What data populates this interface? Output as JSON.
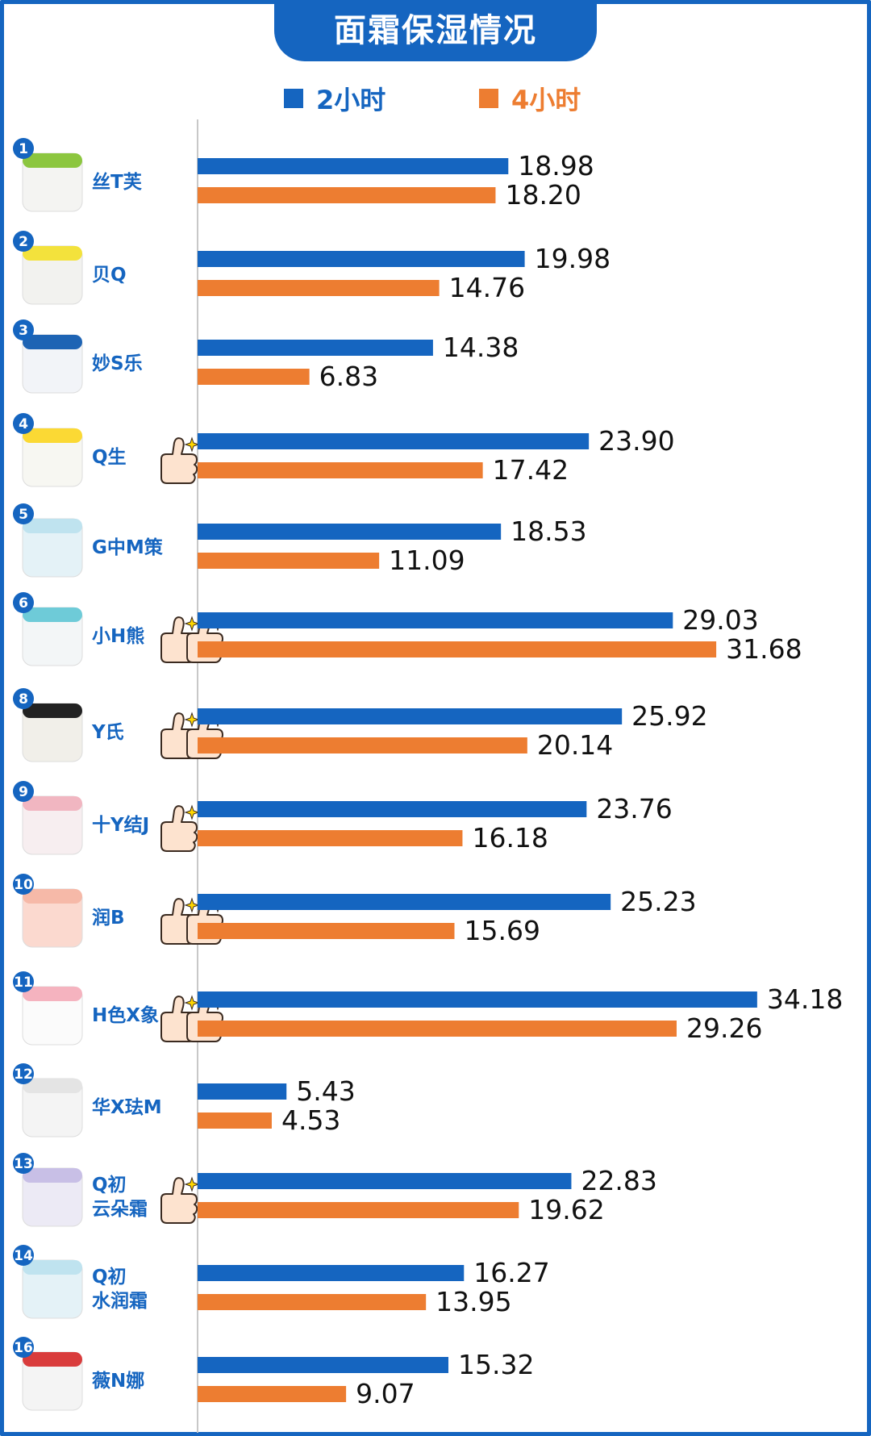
{
  "title": "面霜保湿情况",
  "legend": [
    {
      "label": "2小时",
      "color": "#1565c0"
    },
    {
      "label": "4小时",
      "color": "#ed7d31"
    }
  ],
  "chart_data": {
    "type": "bar",
    "orientation": "horizontal",
    "title": "面霜保湿情况",
    "categories": [
      {
        "rank": "1",
        "lines": [
          "丝T芙"
        ]
      },
      {
        "rank": "2",
        "lines": [
          "贝Q"
        ]
      },
      {
        "rank": "3",
        "lines": [
          "妙S乐"
        ]
      },
      {
        "rank": "4",
        "lines": [
          "Q生"
        ]
      },
      {
        "rank": "5",
        "lines": [
          "G中M策"
        ]
      },
      {
        "rank": "6",
        "lines": [
          "小H熊"
        ]
      },
      {
        "rank": "8",
        "lines": [
          "Y氏"
        ]
      },
      {
        "rank": "9",
        "lines": [
          "十Y结J"
        ]
      },
      {
        "rank": "10",
        "lines": [
          "润B"
        ]
      },
      {
        "rank": "11",
        "lines": [
          "H色X象"
        ]
      },
      {
        "rank": "12",
        "lines": [
          "华X珐M"
        ]
      },
      {
        "rank": "13",
        "lines": [
          "Q初",
          "云朵霜"
        ]
      },
      {
        "rank": "14",
        "lines": [
          "Q初",
          "水润霜"
        ]
      },
      {
        "rank": "16",
        "lines": [
          "薇N娜"
        ]
      }
    ],
    "series": [
      {
        "name": "2小时",
        "color": "#1565c0",
        "values": [
          18.98,
          19.98,
          14.38,
          23.9,
          18.53,
          29.03,
          25.92,
          23.76,
          25.23,
          34.18,
          5.43,
          22.83,
          16.27,
          15.32
        ],
        "labels": [
          "18.98",
          "19.98",
          "14.38",
          "23.90",
          "18.53",
          "29.03",
          "25.92",
          "23.76",
          "25.23",
          "34.18",
          "5.43",
          "22.83",
          "16.27",
          "15.32"
        ]
      },
      {
        "name": "4小时",
        "color": "#ed7d31",
        "values": [
          18.2,
          14.76,
          6.83,
          17.42,
          11.09,
          31.68,
          20.14,
          16.18,
          15.69,
          29.26,
          4.53,
          19.62,
          13.95,
          9.07
        ],
        "labels": [
          "18.20",
          "14.76",
          "6.83",
          "17.42",
          "11.09",
          "31.68",
          "20.14",
          "16.18",
          "15.69",
          "29.26",
          "4.53",
          "19.62",
          "13.95",
          "9.07"
        ]
      }
    ],
    "thumbs_up": [
      0,
      0,
      0,
      1,
      0,
      2,
      2,
      1,
      2,
      2,
      0,
      1,
      0,
      0
    ],
    "product_images": [
      "white tub, green label",
      "white tub, yellow lid",
      "white tube, blue cap",
      "yellow lid jar",
      "light blue jar",
      "white jar, teal base",
      "black lid jar",
      "pink jar",
      "peach jar",
      "pink/white jar",
      "white bottle",
      "lavender dome jar",
      "light blue jar",
      "white tube"
    ],
    "xlim": [
      0,
      35
    ],
    "grid": false,
    "legend_position": "top-center"
  }
}
